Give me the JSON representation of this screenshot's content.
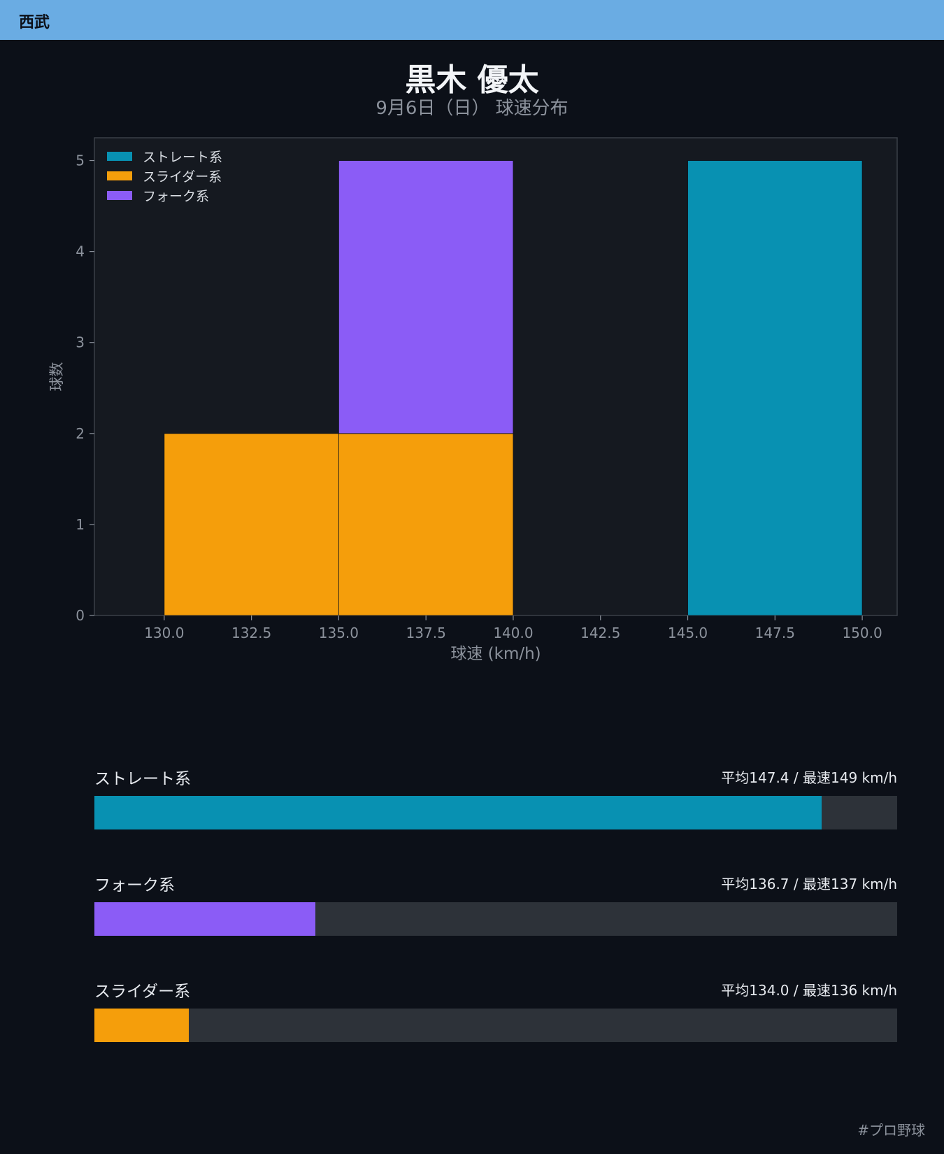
{
  "header": {
    "team": "西武"
  },
  "title": "黒木 優太",
  "subtitle": "9月6日（日） 球速分布",
  "chart_data": {
    "type": "bar",
    "stacked": true,
    "xlabel": "球速 (km/h)",
    "ylabel": "球数",
    "xlim": [
      128,
      151
    ],
    "ylim": [
      0,
      5.25
    ],
    "xticks": [
      "130.0",
      "132.5",
      "135.0",
      "137.5",
      "140.0",
      "142.5",
      "145.0",
      "147.5",
      "150.0"
    ],
    "yticks": [
      "0",
      "1",
      "2",
      "3",
      "4",
      "5"
    ],
    "legend_position": "top-left",
    "bins": [
      [
        130,
        135
      ],
      [
        135,
        140
      ],
      [
        140,
        145
      ],
      [
        145,
        150
      ]
    ],
    "series": [
      {
        "name": "ストレート系",
        "color": "#0891b2",
        "values": [
          0,
          0,
          0,
          5
        ]
      },
      {
        "name": "スライダー系",
        "color": "#f59e0b",
        "values": [
          2,
          2,
          0,
          0
        ]
      },
      {
        "name": "フォーク系",
        "color": "#8b5cf6",
        "values": [
          0,
          3,
          0,
          0
        ]
      }
    ]
  },
  "speed_stats": [
    {
      "name": "ストレート系",
      "summary": "平均147.4 / 最速149 km/h",
      "share": 0.906,
      "color": "#0891b2"
    },
    {
      "name": "フォーク系",
      "summary": "平均136.7 / 最速137 km/h",
      "share": 0.275,
      "color": "#8b5cf6"
    },
    {
      "name": "スライダー系",
      "summary": "平均134.0 / 最速136 km/h",
      "share": 0.118,
      "color": "#f59e0b"
    }
  ],
  "footer": {
    "hashtag": "#プロ野球"
  }
}
